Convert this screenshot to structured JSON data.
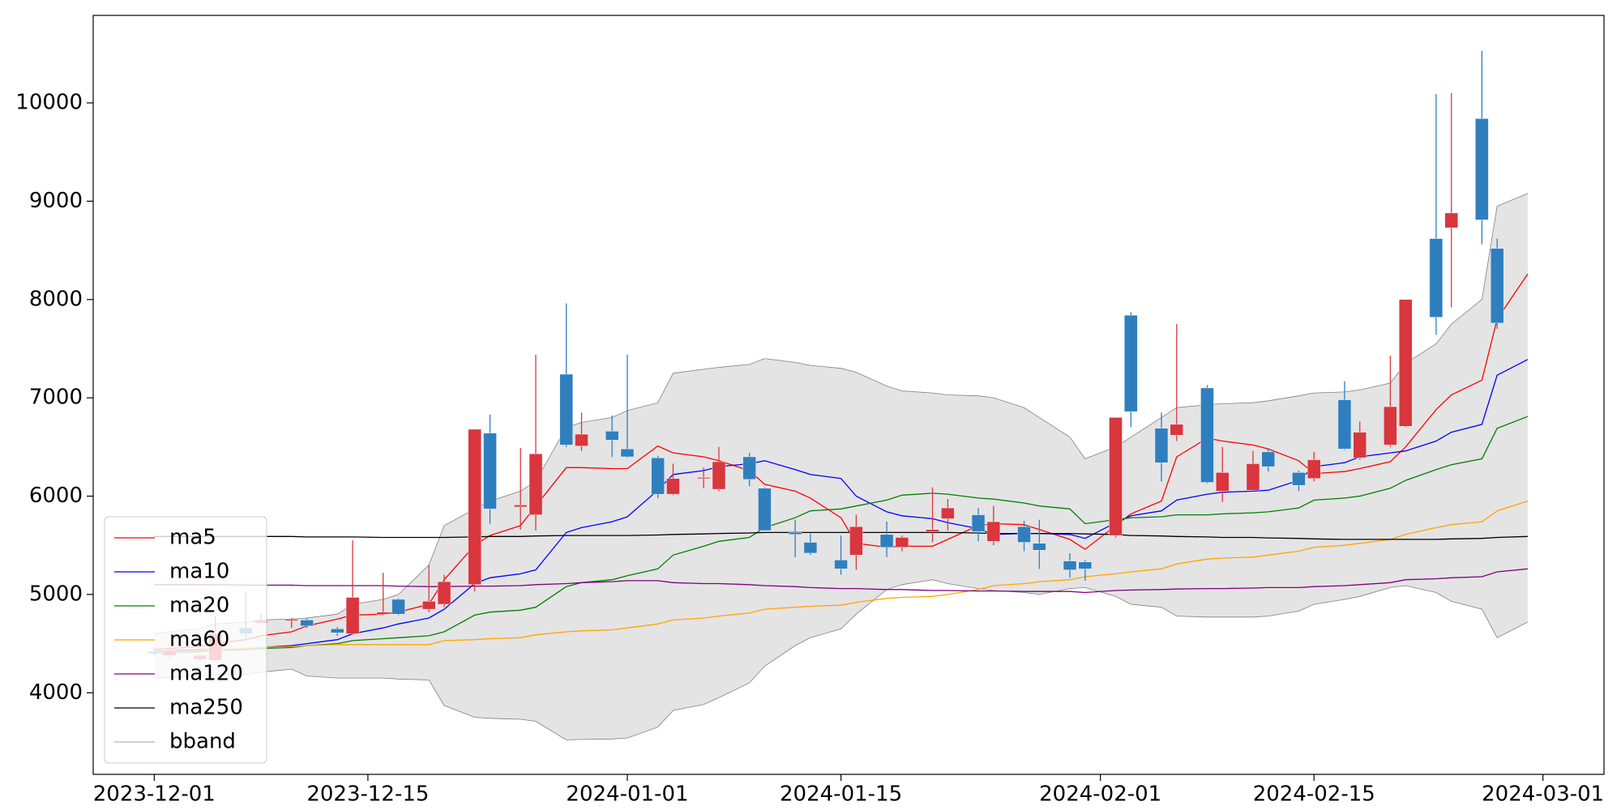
{
  "chart_data": {
    "type": "candlestick",
    "x": [
      "2023-12-01",
      "2023-12-02",
      "2023-12-04",
      "2023-12-05",
      "2023-12-07",
      "2023-12-08",
      "2023-12-10",
      "2023-12-11",
      "2023-12-13",
      "2023-12-14",
      "2023-12-16",
      "2023-12-17",
      "2023-12-19",
      "2023-12-20",
      "2023-12-22",
      "2023-12-23",
      "2023-12-25",
      "2023-12-26",
      "2023-12-28",
      "2023-12-29",
      "2023-12-31",
      "2024-01-01",
      "2024-01-03",
      "2024-01-04",
      "2024-01-06",
      "2024-01-07",
      "2024-01-09",
      "2024-01-10",
      "2024-01-12",
      "2024-01-13",
      "2024-01-15",
      "2024-01-16",
      "2024-01-18",
      "2024-01-19",
      "2024-01-21",
      "2024-01-22",
      "2024-01-24",
      "2024-01-25",
      "2024-01-27",
      "2024-01-28",
      "2024-01-30",
      "2024-01-31",
      "2024-02-02",
      "2024-02-03",
      "2024-02-05",
      "2024-02-06",
      "2024-02-08",
      "2024-02-09",
      "2024-02-11",
      "2024-02-12",
      "2024-02-14",
      "2024-02-15",
      "2024-02-17",
      "2024-02-18",
      "2024-02-20",
      "2024-02-21",
      "2024-02-23",
      "2024-02-24",
      "2024-02-26",
      "2024-02-27",
      "2024-02-29"
    ],
    "candles": {
      "up_color": "#d9363e",
      "down_color": "#2f7fbf",
      "open": [
        4420,
        4380,
        4340,
        4330,
        4660,
        4710,
        4740,
        4740,
        4650,
        4600,
        4800,
        4950,
        4850,
        4900,
        5100,
        6640,
        5890,
        5810,
        7240,
        6510,
        6660,
        6480,
        6390,
        6020,
        6180,
        6070,
        6400,
        6080,
        5630,
        5530,
        5350,
        5400,
        5610,
        5480,
        5640,
        5770,
        5810,
        5540,
        5690,
        5520,
        5340,
        5330,
        5600,
        7840,
        6690,
        6620,
        7100,
        6050,
        6060,
        6450,
        6240,
        6180,
        6980,
        6390,
        6520,
        6710,
        8620,
        8730,
        9840,
        8520,
        null
      ],
      "high": [
        4460,
        4460,
        4400,
        4780,
        5020,
        4800,
        4760,
        4760,
        4670,
        5550,
        5220,
        4960,
        5300,
        5200,
        6680,
        6830,
        6490,
        7440,
        7960,
        6850,
        6820,
        7440,
        6410,
        6330,
        6290,
        6500,
        6440,
        6090,
        5760,
        5620,
        5600,
        5810,
        5740,
        5600,
        6090,
        5970,
        5880,
        5900,
        5750,
        5760,
        5420,
        5350,
        6800,
        7870,
        6850,
        7750,
        7130,
        6500,
        6460,
        6490,
        6260,
        6450,
        7170,
        6760,
        7430,
        8000,
        10090,
        10100,
        10530,
        8620,
        null
      ],
      "low": [
        4380,
        4350,
        4320,
        4320,
        4550,
        4690,
        4660,
        4660,
        4580,
        4590,
        4790,
        4790,
        4820,
        4870,
        5030,
        5720,
        5660,
        5650,
        6500,
        6460,
        6400,
        6390,
        5980,
        6010,
        6080,
        6050,
        6100,
        5650,
        5380,
        5400,
        5200,
        5250,
        5380,
        5440,
        5530,
        5650,
        5540,
        5500,
        5440,
        5260,
        5170,
        5140,
        5580,
        6700,
        6150,
        6560,
        6130,
        5940,
        6050,
        6250,
        6050,
        6150,
        6470,
        6370,
        6500,
        6700,
        7640,
        7920,
        8560,
        7700,
        null
      ],
      "close": [
        4400,
        4430,
        4380,
        4600,
        4600,
        4740,
        4745,
        4680,
        4610,
        4970,
        4820,
        4800,
        4930,
        5130,
        6680,
        5870,
        5910,
        6430,
        6520,
        6630,
        6570,
        6400,
        6020,
        6180,
        6190,
        6350,
        6170,
        5650,
        5610,
        5420,
        5260,
        5690,
        5480,
        5580,
        5660,
        5880,
        5640,
        5740,
        5530,
        5450,
        5250,
        5260,
        6800,
        6860,
        6340,
        6730,
        6140,
        6240,
        6330,
        6300,
        6110,
        6370,
        6480,
        6650,
        6910,
        8000,
        7820,
        8880,
        8810,
        7760,
        null
      ]
    },
    "series": [
      {
        "name": "ma5",
        "color": "#ff0000",
        "values": [
          4440,
          4450,
          4470,
          4500,
          4540,
          4580,
          4620,
          4680,
          4750,
          4790,
          4800,
          4820,
          4900,
          5150,
          5500,
          5600,
          5700,
          5900,
          6290,
          6290,
          6280,
          6280,
          6510,
          6440,
          6400,
          6360,
          6260,
          6120,
          6050,
          5980,
          5780,
          5520,
          5480,
          5490,
          5490,
          5560,
          5700,
          5720,
          5710,
          5660,
          5560,
          5460,
          5700,
          5820,
          5950,
          6400,
          6590,
          6560,
          6520,
          6480,
          6360,
          6230,
          6250,
          6280,
          6350,
          6500,
          6880,
          7030,
          7180,
          7800,
          8260
        ]
      },
      {
        "name": "ma10",
        "color": "#0000ff",
        "values": [
          4420,
          4430,
          4440,
          4440,
          4450,
          4460,
          4480,
          4500,
          4540,
          4600,
          4660,
          4700,
          4760,
          4850,
          5110,
          5170,
          5210,
          5250,
          5630,
          5680,
          5740,
          5790,
          6060,
          6220,
          6260,
          6300,
          6330,
          6360,
          6270,
          6220,
          6180,
          6000,
          5840,
          5800,
          5770,
          5730,
          5670,
          5610,
          5620,
          5620,
          5610,
          5570,
          5730,
          5800,
          5850,
          5960,
          6020,
          6040,
          6050,
          6060,
          6160,
          6300,
          6340,
          6400,
          6440,
          6460,
          6560,
          6650,
          6730,
          7230,
          7390
        ]
      },
      {
        "name": "ma20",
        "color": "#008000",
        "values": [
          4400,
          4410,
          4420,
          4430,
          4440,
          4450,
          4460,
          4480,
          4500,
          4530,
          4550,
          4560,
          4580,
          4620,
          4790,
          4820,
          4840,
          4870,
          5080,
          5120,
          5150,
          5190,
          5260,
          5400,
          5490,
          5540,
          5580,
          5680,
          5780,
          5850,
          5870,
          5900,
          5960,
          6010,
          6030,
          6020,
          5980,
          5970,
          5930,
          5900,
          5870,
          5720,
          5760,
          5780,
          5790,
          5810,
          5810,
          5820,
          5830,
          5840,
          5880,
          5960,
          5980,
          6000,
          6080,
          6160,
          6270,
          6320,
          6380,
          6690,
          6810
        ]
      },
      {
        "name": "ma60",
        "color": "#ffa500",
        "values": [
          4410,
          4420,
          4430,
          4440,
          4450,
          4460,
          4470,
          4480,
          4490,
          4490,
          4490,
          4490,
          4490,
          4530,
          4540,
          4550,
          4560,
          4590,
          4620,
          4630,
          4640,
          4660,
          4700,
          4740,
          4760,
          4780,
          4810,
          4850,
          4870,
          4880,
          4890,
          4920,
          4960,
          4970,
          4980,
          5000,
          5050,
          5090,
          5110,
          5130,
          5150,
          5180,
          5210,
          5230,
          5260,
          5310,
          5360,
          5370,
          5380,
          5400,
          5440,
          5480,
          5500,
          5520,
          5560,
          5610,
          5680,
          5710,
          5740,
          5850,
          5950
        ]
      },
      {
        "name": "ma120",
        "color": "#800080",
        "values": [
          5100,
          5100,
          5100,
          5100,
          5095,
          5095,
          5095,
          5090,
          5090,
          5090,
          5090,
          5085,
          5080,
          5080,
          5085,
          5085,
          5090,
          5100,
          5110,
          5120,
          5130,
          5140,
          5140,
          5120,
          5110,
          5110,
          5100,
          5090,
          5080,
          5070,
          5060,
          5060,
          5050,
          5050,
          5040,
          5040,
          5035,
          5035,
          5030,
          5030,
          5030,
          5020,
          5040,
          5045,
          5050,
          5055,
          5060,
          5060,
          5065,
          5070,
          5070,
          5080,
          5090,
          5100,
          5120,
          5150,
          5160,
          5170,
          5180,
          5230,
          5260
        ]
      },
      {
        "name": "ma250",
        "color": "#000000",
        "values": [
          5590,
          5590,
          5590,
          5590,
          5590,
          5590,
          5590,
          5585,
          5585,
          5585,
          5580,
          5580,
          5580,
          5580,
          5585,
          5590,
          5590,
          5595,
          5600,
          5600,
          5600,
          5600,
          5605,
          5610,
          5615,
          5620,
          5625,
          5630,
          5630,
          5630,
          5630,
          5630,
          5630,
          5630,
          5630,
          5630,
          5625,
          5620,
          5620,
          5620,
          5620,
          5615,
          5610,
          5600,
          5595,
          5590,
          5585,
          5580,
          5580,
          5575,
          5570,
          5565,
          5560,
          5560,
          5560,
          5560,
          5560,
          5565,
          5570,
          5580,
          5590
        ]
      }
    ],
    "band": {
      "name": "bband",
      "color": "#808080",
      "fill": "#e4e4e4",
      "upper": [
        4600,
        4620,
        4650,
        4700,
        4720,
        4740,
        4750,
        4760,
        4800,
        4900,
        4950,
        5000,
        5300,
        5700,
        5870,
        5950,
        6050,
        6150,
        6700,
        6750,
        6800,
        6870,
        6950,
        7250,
        7290,
        7310,
        7340,
        7400,
        7360,
        7330,
        7300,
        7260,
        7120,
        7070,
        7050,
        7030,
        7020,
        7000,
        6900,
        6800,
        6600,
        6380,
        6500,
        6600,
        6800,
        6900,
        6930,
        6940,
        6950,
        6970,
        7020,
        7050,
        7060,
        7080,
        7150,
        7350,
        7550,
        7750,
        8000,
        8950,
        9080
      ],
      "lower": [
        4150,
        4160,
        4170,
        4180,
        4190,
        4210,
        4240,
        4170,
        4150,
        4150,
        4150,
        4140,
        4130,
        3870,
        3750,
        3740,
        3730,
        3710,
        3520,
        3525,
        3530,
        3540,
        3650,
        3820,
        3880,
        3950,
        4100,
        4270,
        4480,
        4560,
        4650,
        4800,
        5050,
        5100,
        5150,
        5110,
        5060,
        5040,
        5020,
        5000,
        5060,
        5070,
        4980,
        4900,
        4870,
        4780,
        4770,
        4770,
        4770,
        4780,
        4830,
        4900,
        4950,
        4980,
        5070,
        5090,
        5020,
        4930,
        4850,
        4560,
        4720
      ]
    },
    "xlim": [
      "2023-11-27",
      "2024-03-05"
    ],
    "xticks": [
      "2023-12-01",
      "2023-12-15",
      "2024-01-01",
      "2024-01-15",
      "2024-02-01",
      "2024-02-15",
      "2024-03-01"
    ],
    "ylim": [
      3170,
      10890
    ],
    "yticks": [
      4000,
      5000,
      6000,
      7000,
      8000,
      9000,
      10000
    ],
    "grid": false,
    "legend": "lower left"
  }
}
